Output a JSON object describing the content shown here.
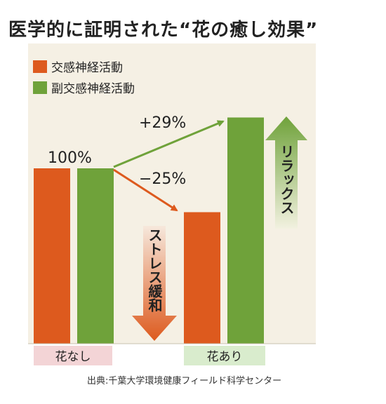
{
  "title": "医学的に証明された“花の癒し効果”",
  "source": "出典:千葉大学環境健康フィールド科学センター",
  "colors": {
    "sympathetic": "#dd5a1e",
    "parasympathetic": "#6fa23a",
    "label_before_bg": "#f3d4d6",
    "label_after_bg": "#d9eccd"
  },
  "chart_data": {
    "type": "bar",
    "categories": [
      "花なし",
      "花あり"
    ],
    "series": [
      {
        "name": "交感神経活動",
        "values": [
          100,
          75
        ]
      },
      {
        "name": "副交感神経活動",
        "values": [
          100,
          129
        ]
      }
    ],
    "ylim": [
      0,
      140
    ],
    "grid": false,
    "legend": "top-left",
    "annotations": {
      "baseline": "100%",
      "up_change": "+29%",
      "down_change": "−25%",
      "stress_arrow_text": "ストレス緩和",
      "relax_arrow_text": "リラックス"
    }
  }
}
